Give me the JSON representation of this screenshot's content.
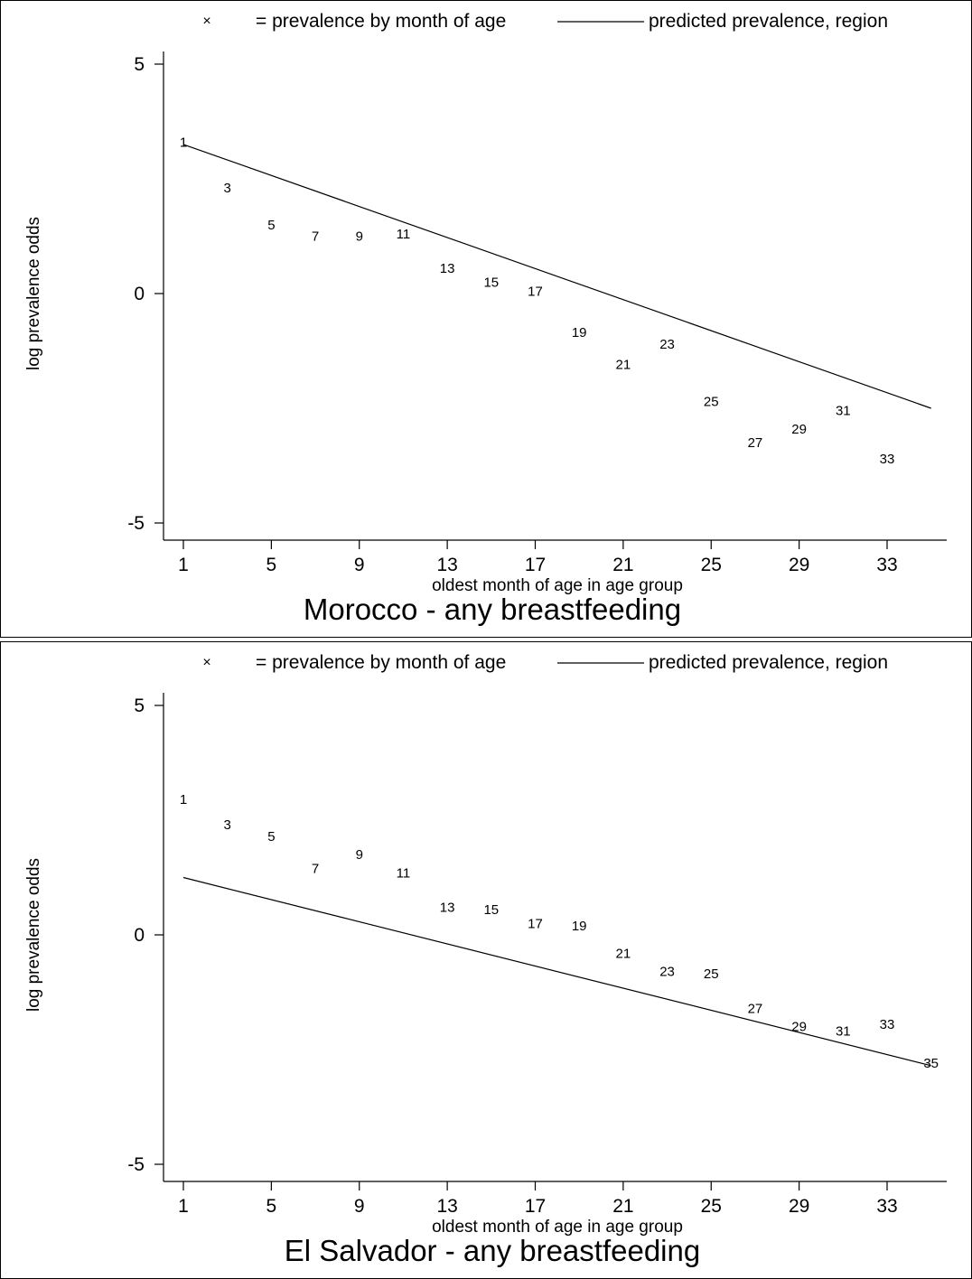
{
  "chart_data": [
    {
      "type": "scatter",
      "title": "Morocco - any breastfeeding",
      "xlabel": "oldest month of age in age group",
      "ylabel": "log prevalence odds",
      "xlim": [
        0,
        36
      ],
      "ylim": [
        -5.4,
        5.4
      ],
      "xticks": [
        "1",
        "5",
        "9",
        "13",
        "17",
        "21",
        "25",
        "29",
        "33"
      ],
      "yticks": [
        "5",
        "0",
        "-5"
      ],
      "grid": false,
      "legend_position": "top",
      "legend": {
        "marker_symbol": "×",
        "marker_label": "= prevalence by month of age",
        "line_label": "predicted prevalence, region"
      },
      "series": [
        {
          "kind": "points",
          "x": [
            1,
            3,
            5,
            7,
            9,
            11,
            13,
            15,
            17,
            19,
            21,
            23,
            25,
            27,
            29,
            31,
            33
          ],
          "y": [
            3.3,
            2.3,
            1.5,
            1.25,
            1.25,
            1.3,
            0.55,
            0.25,
            0.05,
            -0.85,
            -1.55,
            -1.1,
            -2.35,
            -3.25,
            -2.95,
            -2.55,
            -3.6
          ],
          "labels": [
            "1",
            "3",
            "5",
            "7",
            "9",
            "11",
            "13",
            "15",
            "17",
            "19",
            "21",
            "23",
            "25",
            "27",
            "29",
            "31",
            "33"
          ]
        },
        {
          "kind": "line",
          "x": [
            1,
            35
          ],
          "y": [
            3.25,
            -2.5
          ]
        }
      ]
    },
    {
      "type": "scatter",
      "title": "El Salvador - any breastfeeding",
      "xlabel": "oldest month of age in age group",
      "ylabel": "log prevalence odds",
      "xlim": [
        0,
        36
      ],
      "ylim": [
        -5.4,
        5.4
      ],
      "xticks": [
        "1",
        "5",
        "9",
        "13",
        "17",
        "21",
        "25",
        "29",
        "33"
      ],
      "yticks": [
        "5",
        "0",
        "-5"
      ],
      "grid": false,
      "legend_position": "top",
      "legend": {
        "marker_symbol": "×",
        "marker_label": "= prevalence by month of age",
        "line_label": "predicted prevalence, region"
      },
      "series": [
        {
          "kind": "points",
          "x": [
            1,
            3,
            5,
            7,
            9,
            11,
            13,
            15,
            17,
            19,
            21,
            23,
            25,
            27,
            29,
            31,
            33,
            35
          ],
          "y": [
            2.95,
            2.4,
            2.15,
            1.45,
            1.75,
            1.35,
            0.6,
            0.55,
            0.25,
            0.2,
            -0.4,
            -0.8,
            -0.85,
            -1.6,
            -2.0,
            -2.1,
            -1.95,
            -2.8
          ],
          "labels": [
            "1",
            "3",
            "5",
            "7",
            "9",
            "11",
            "13",
            "15",
            "17",
            "19",
            "21",
            "23",
            "25",
            "27",
            "29",
            "31",
            "33",
            "35"
          ]
        },
        {
          "kind": "line",
          "x": [
            1,
            35
          ],
          "y": [
            1.25,
            -2.85
          ]
        }
      ]
    }
  ]
}
